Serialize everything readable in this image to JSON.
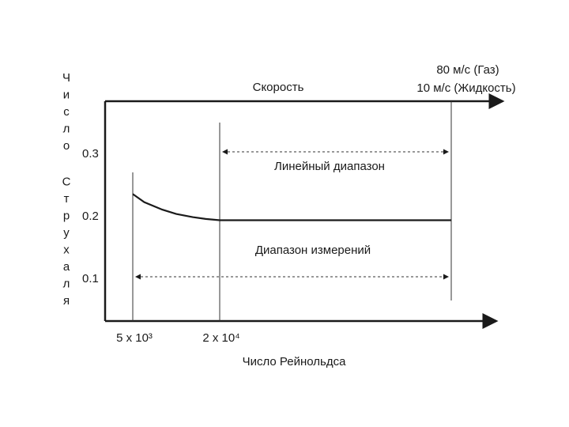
{
  "chart_data": {
    "type": "line",
    "title": "",
    "xlabel": "Число Рейнольдса",
    "ylabel": "Число Струхаля",
    "top_axis_label": "Скорость",
    "top_right_label": [
      "80 м/с (Газ)",
      "10 м/с (Жидкость)"
    ],
    "x_ticks": [
      {
        "label": "5 x 10³",
        "value": 5000
      },
      {
        "label": "2 x 10⁴",
        "value": 20000
      }
    ],
    "y_ticks": [
      {
        "label": "0.3",
        "value": 0.3
      },
      {
        "label": "0.2",
        "value": 0.2
      },
      {
        "label": "0.1",
        "value": 0.1
      }
    ],
    "ranges": [
      {
        "name": "Линейный диапазон",
        "from": 20000,
        "to": "max"
      },
      {
        "name": "Диапазон измерений",
        "from": 5000,
        "to": "max"
      }
    ],
    "series": [
      {
        "x": [
          5000,
          6000,
          8000,
          10000,
          13000,
          16000,
          20000,
          "max"
        ],
        "y": [
          0.235,
          0.222,
          0.21,
          0.203,
          0.198,
          0.195,
          0.193,
          0.193
        ]
      }
    ],
    "grid": false,
    "legend": "none"
  }
}
